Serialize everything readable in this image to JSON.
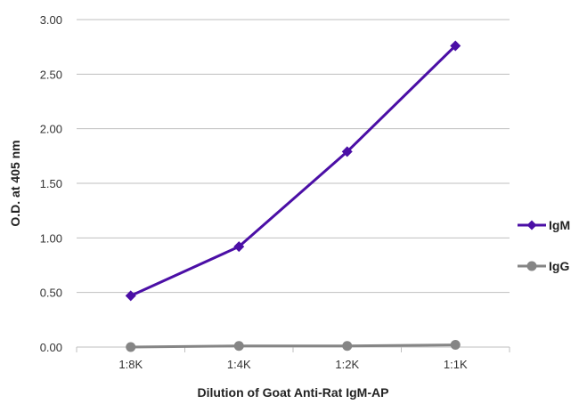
{
  "chart_data": {
    "type": "line",
    "title": "",
    "xlabel": "Dilution of Goat Anti-Rat IgM-AP",
    "ylabel": "O.D. at 405 nm",
    "categories": [
      "1:8K",
      "1:4K",
      "1:2K",
      "1:1K"
    ],
    "ylim": [
      0,
      3
    ],
    "yticks": [
      "0.00",
      "0.50",
      "1.00",
      "1.50",
      "2.00",
      "2.50",
      "3.00"
    ],
    "grid": true,
    "legend_position": "right",
    "series": [
      {
        "name": "IgM",
        "values": [
          0.47,
          0.92,
          1.79,
          2.76
        ],
        "color": "#4b0fa6",
        "marker": "diamond"
      },
      {
        "name": "IgG",
        "values": [
          0.0,
          0.01,
          0.01,
          0.02
        ],
        "color": "#858585",
        "marker": "circle"
      }
    ]
  }
}
